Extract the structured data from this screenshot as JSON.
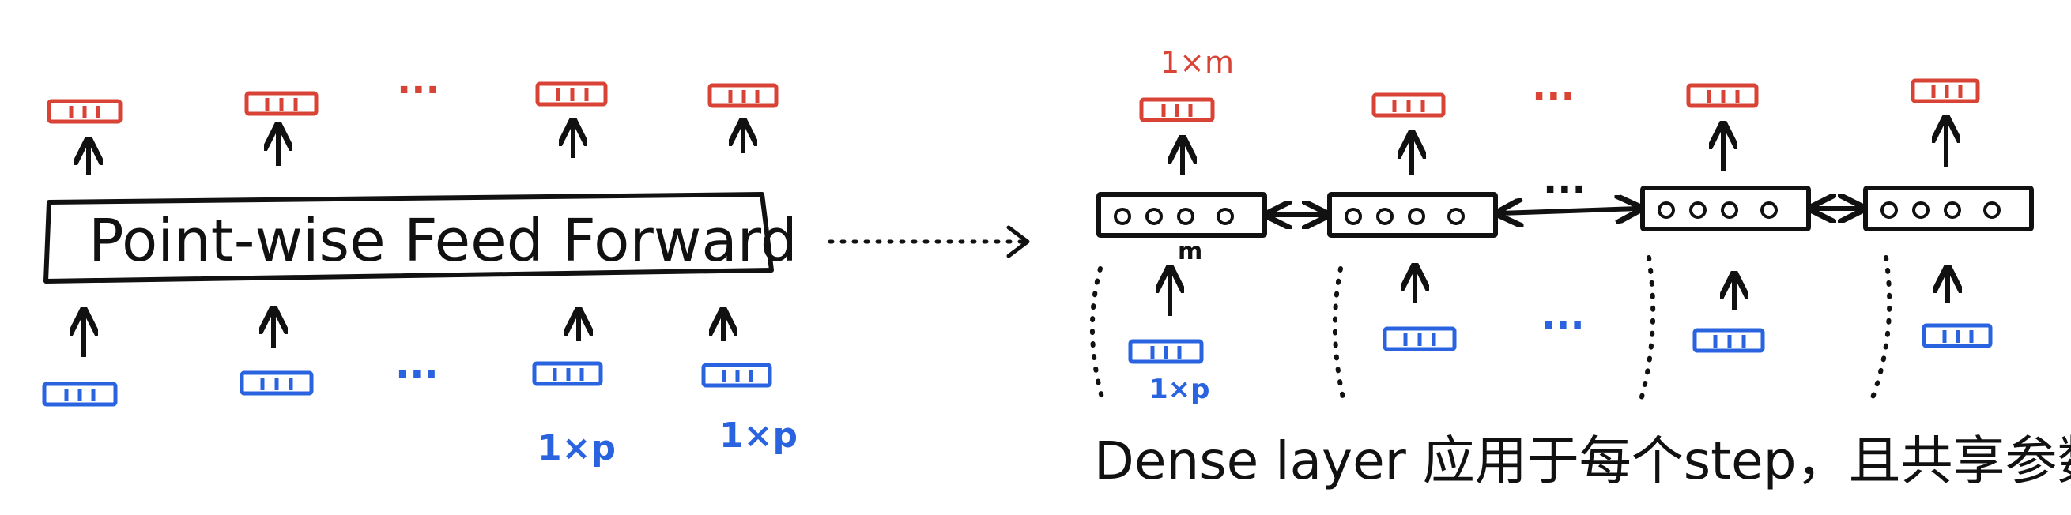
{
  "left_panel": {
    "ffn_label": "Point-wise Feed Forward",
    "ellipsis": "···",
    "input_dim_label": "1×p"
  },
  "right_panel": {
    "output_dim_label": "1×m",
    "hidden_dim_label": "m",
    "input_dim_label": "1×p",
    "ellipsis": "···",
    "caption": "Dense layer 应用于每个step，且共享参数."
  },
  "colors": {
    "output_vector": "#d94336",
    "input_vector": "#2a63e0",
    "ink": "#111111"
  }
}
